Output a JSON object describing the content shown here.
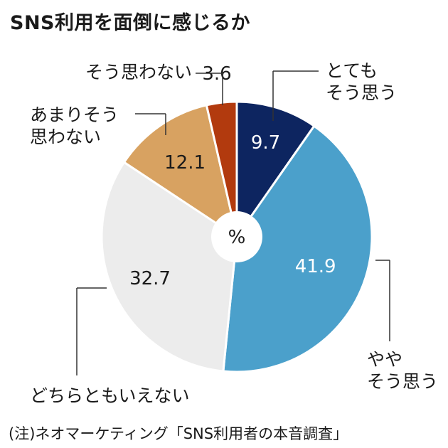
{
  "title": "SNS利用を面倒に感じるか",
  "note": "(注)ネオマーケティング「SNS利用者の本音調査」",
  "chart_data": {
    "type": "pie",
    "style": "donut",
    "center_label": "%",
    "series": [
      {
        "name": "とても そう思う",
        "lines": [
          "とても",
          "そう思う"
        ],
        "value": 9.7,
        "label": "9.7",
        "color": "#0d2560",
        "text_color": "#ffffff"
      },
      {
        "name": "やや そう思う",
        "lines": [
          "やや",
          "そう思う"
        ],
        "value": 41.9,
        "label": "41.9",
        "color": "#4ba0cb",
        "text_color": "#ffffff"
      },
      {
        "name": "どちらともいえない",
        "lines": [
          "どちらともいえない"
        ],
        "value": 32.7,
        "label": "32.7",
        "color": "#ececec",
        "text_color": "#1a1a1a"
      },
      {
        "name": "あまりそう 思わない",
        "lines": [
          "あまりそう",
          "思わない"
        ],
        "value": 12.1,
        "label": "12.1",
        "color": "#d8a261",
        "text_color": "#1a1a1a"
      },
      {
        "name": "そう思わない",
        "lines": [
          "そう思わない"
        ],
        "value": 3.6,
        "label": "3.6",
        "color": "#b23a0e",
        "text_color": "#1a1a1a"
      }
    ]
  }
}
